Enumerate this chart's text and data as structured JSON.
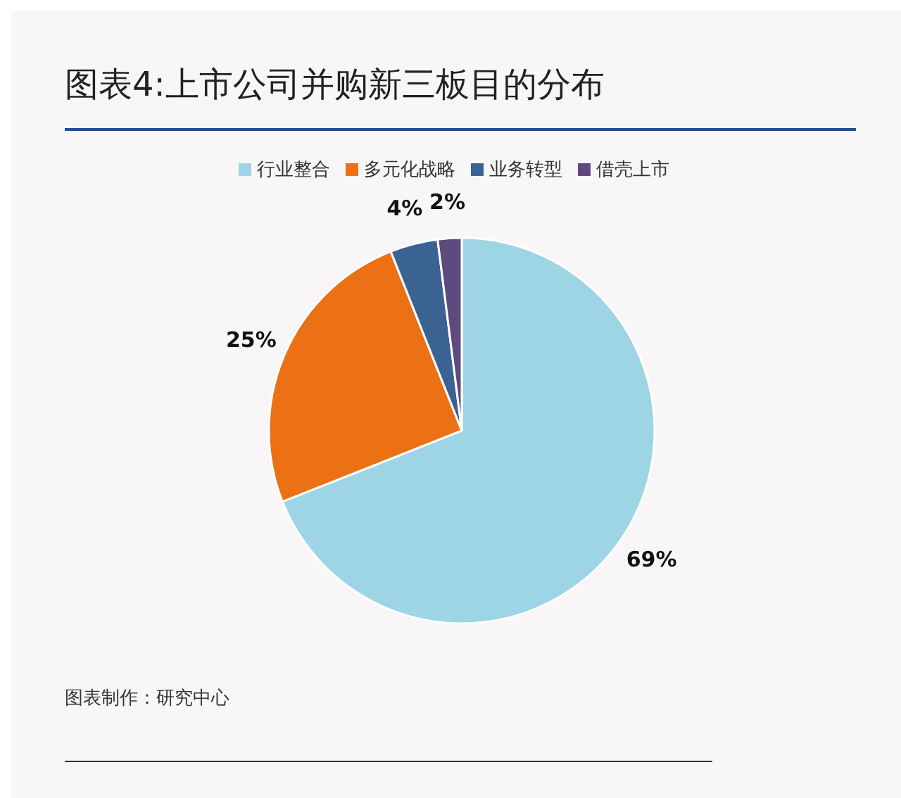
{
  "chart_data": {
    "type": "pie",
    "title": "图表4:上市公司并购新三板目的分布",
    "categories": [
      "行业整合",
      "多元化战略",
      "业务转型",
      "借壳上市"
    ],
    "values": [
      69,
      25,
      4,
      2
    ],
    "colors": [
      "#9dd5e5",
      "#ec7014",
      "#3a6394",
      "#5e4a7e"
    ],
    "value_labels": [
      "69%",
      "25%",
      "4%",
      "2%"
    ],
    "legend": "top",
    "annotations": [
      "图表制作：研究中心"
    ]
  }
}
